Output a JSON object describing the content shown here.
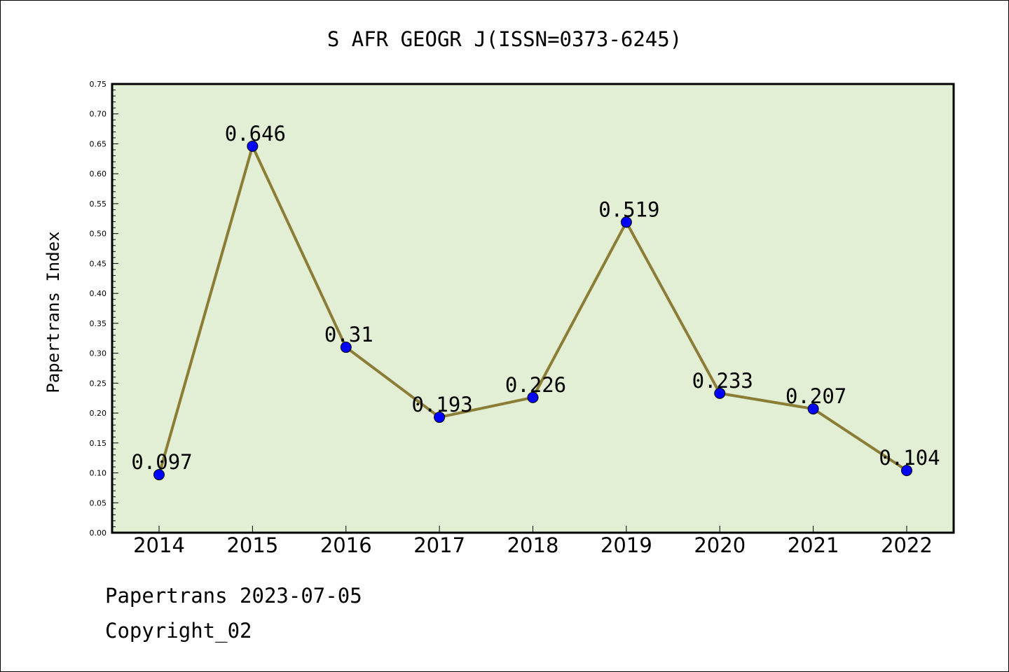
{
  "chart_data": {
    "type": "line",
    "title": "S AFR GEOGR J(ISSN=0373-6245)",
    "xlabel": "",
    "ylabel": "Papertrans Index",
    "categories": [
      "2014",
      "2015",
      "2016",
      "2017",
      "2018",
      "2019",
      "2020",
      "2021",
      "2022"
    ],
    "series": [
      {
        "values": [
          0.097,
          0.646,
          0.31,
          0.193,
          0.226,
          0.519,
          0.233,
          0.207,
          0.104
        ],
        "labels": [
          "0.097",
          "0.646",
          "0.31",
          "0.193",
          "0.226",
          "0.519",
          "0.233",
          "0.207",
          "0.104"
        ]
      }
    ],
    "ylim": [
      0,
      0.75
    ],
    "yticks": [
      "0.00",
      "0.05",
      "0.10",
      "0.15",
      "0.20",
      "0.25",
      "0.30",
      "0.35",
      "0.40",
      "0.45",
      "0.50",
      "0.55",
      "0.60",
      "0.65",
      "0.70",
      "0.75"
    ],
    "grid": false,
    "colors": {
      "plot_background": "#e2efd4",
      "line": "#8b7d36",
      "marker": "#0000ff"
    }
  },
  "footer": {
    "line1": "Papertrans 2023-07-05",
    "line2": "Copyright_02"
  }
}
